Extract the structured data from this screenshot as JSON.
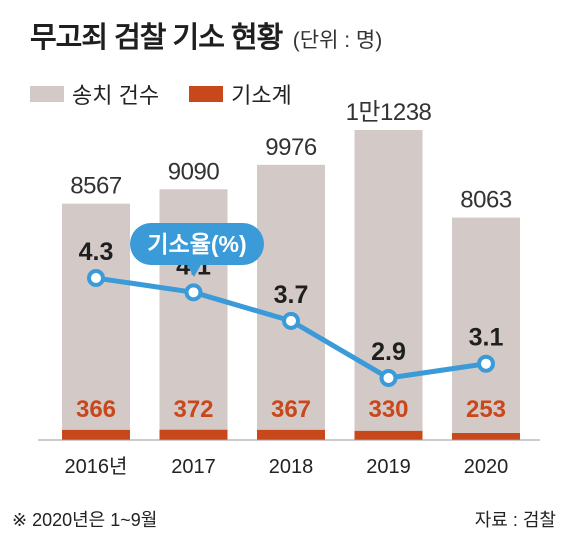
{
  "header": {
    "title": "무고죄 검찰 기소 현황",
    "unit": "(단위 : 명)"
  },
  "legend": [
    {
      "label": "송치 건수",
      "color": "#d3cac7"
    },
    {
      "label": "기소계",
      "color": "#c8471b"
    }
  ],
  "callout": {
    "label": "기소율(%)",
    "color": "#3b9bd8"
  },
  "footer": {
    "note": "※ 2020년은 1~9월",
    "source": "자료 : 검찰"
  },
  "chart_data": {
    "type": "bar",
    "categories": [
      "2016년",
      "2017",
      "2018",
      "2019",
      "2020"
    ],
    "series": [
      {
        "name": "송치 건수",
        "type": "bar",
        "values": [
          8567,
          9090,
          9976,
          11238,
          8063
        ],
        "labels": [
          "8567",
          "9090",
          "9976",
          "1만1238",
          "8063"
        ],
        "color": "#d3cac7"
      },
      {
        "name": "기소계",
        "type": "bar",
        "values": [
          366,
          372,
          367,
          330,
          253
        ],
        "labels": [
          "366",
          "372",
          "367",
          "330",
          "253"
        ],
        "color": "#c8471b"
      },
      {
        "name": "기소율(%)",
        "type": "line",
        "values": [
          4.3,
          4.1,
          3.7,
          2.9,
          3.1
        ],
        "labels": [
          "4.3",
          "4.1",
          "3.7",
          "2.9",
          "3.1"
        ],
        "color": "#3b9bd8"
      }
    ],
    "grid": false
  }
}
